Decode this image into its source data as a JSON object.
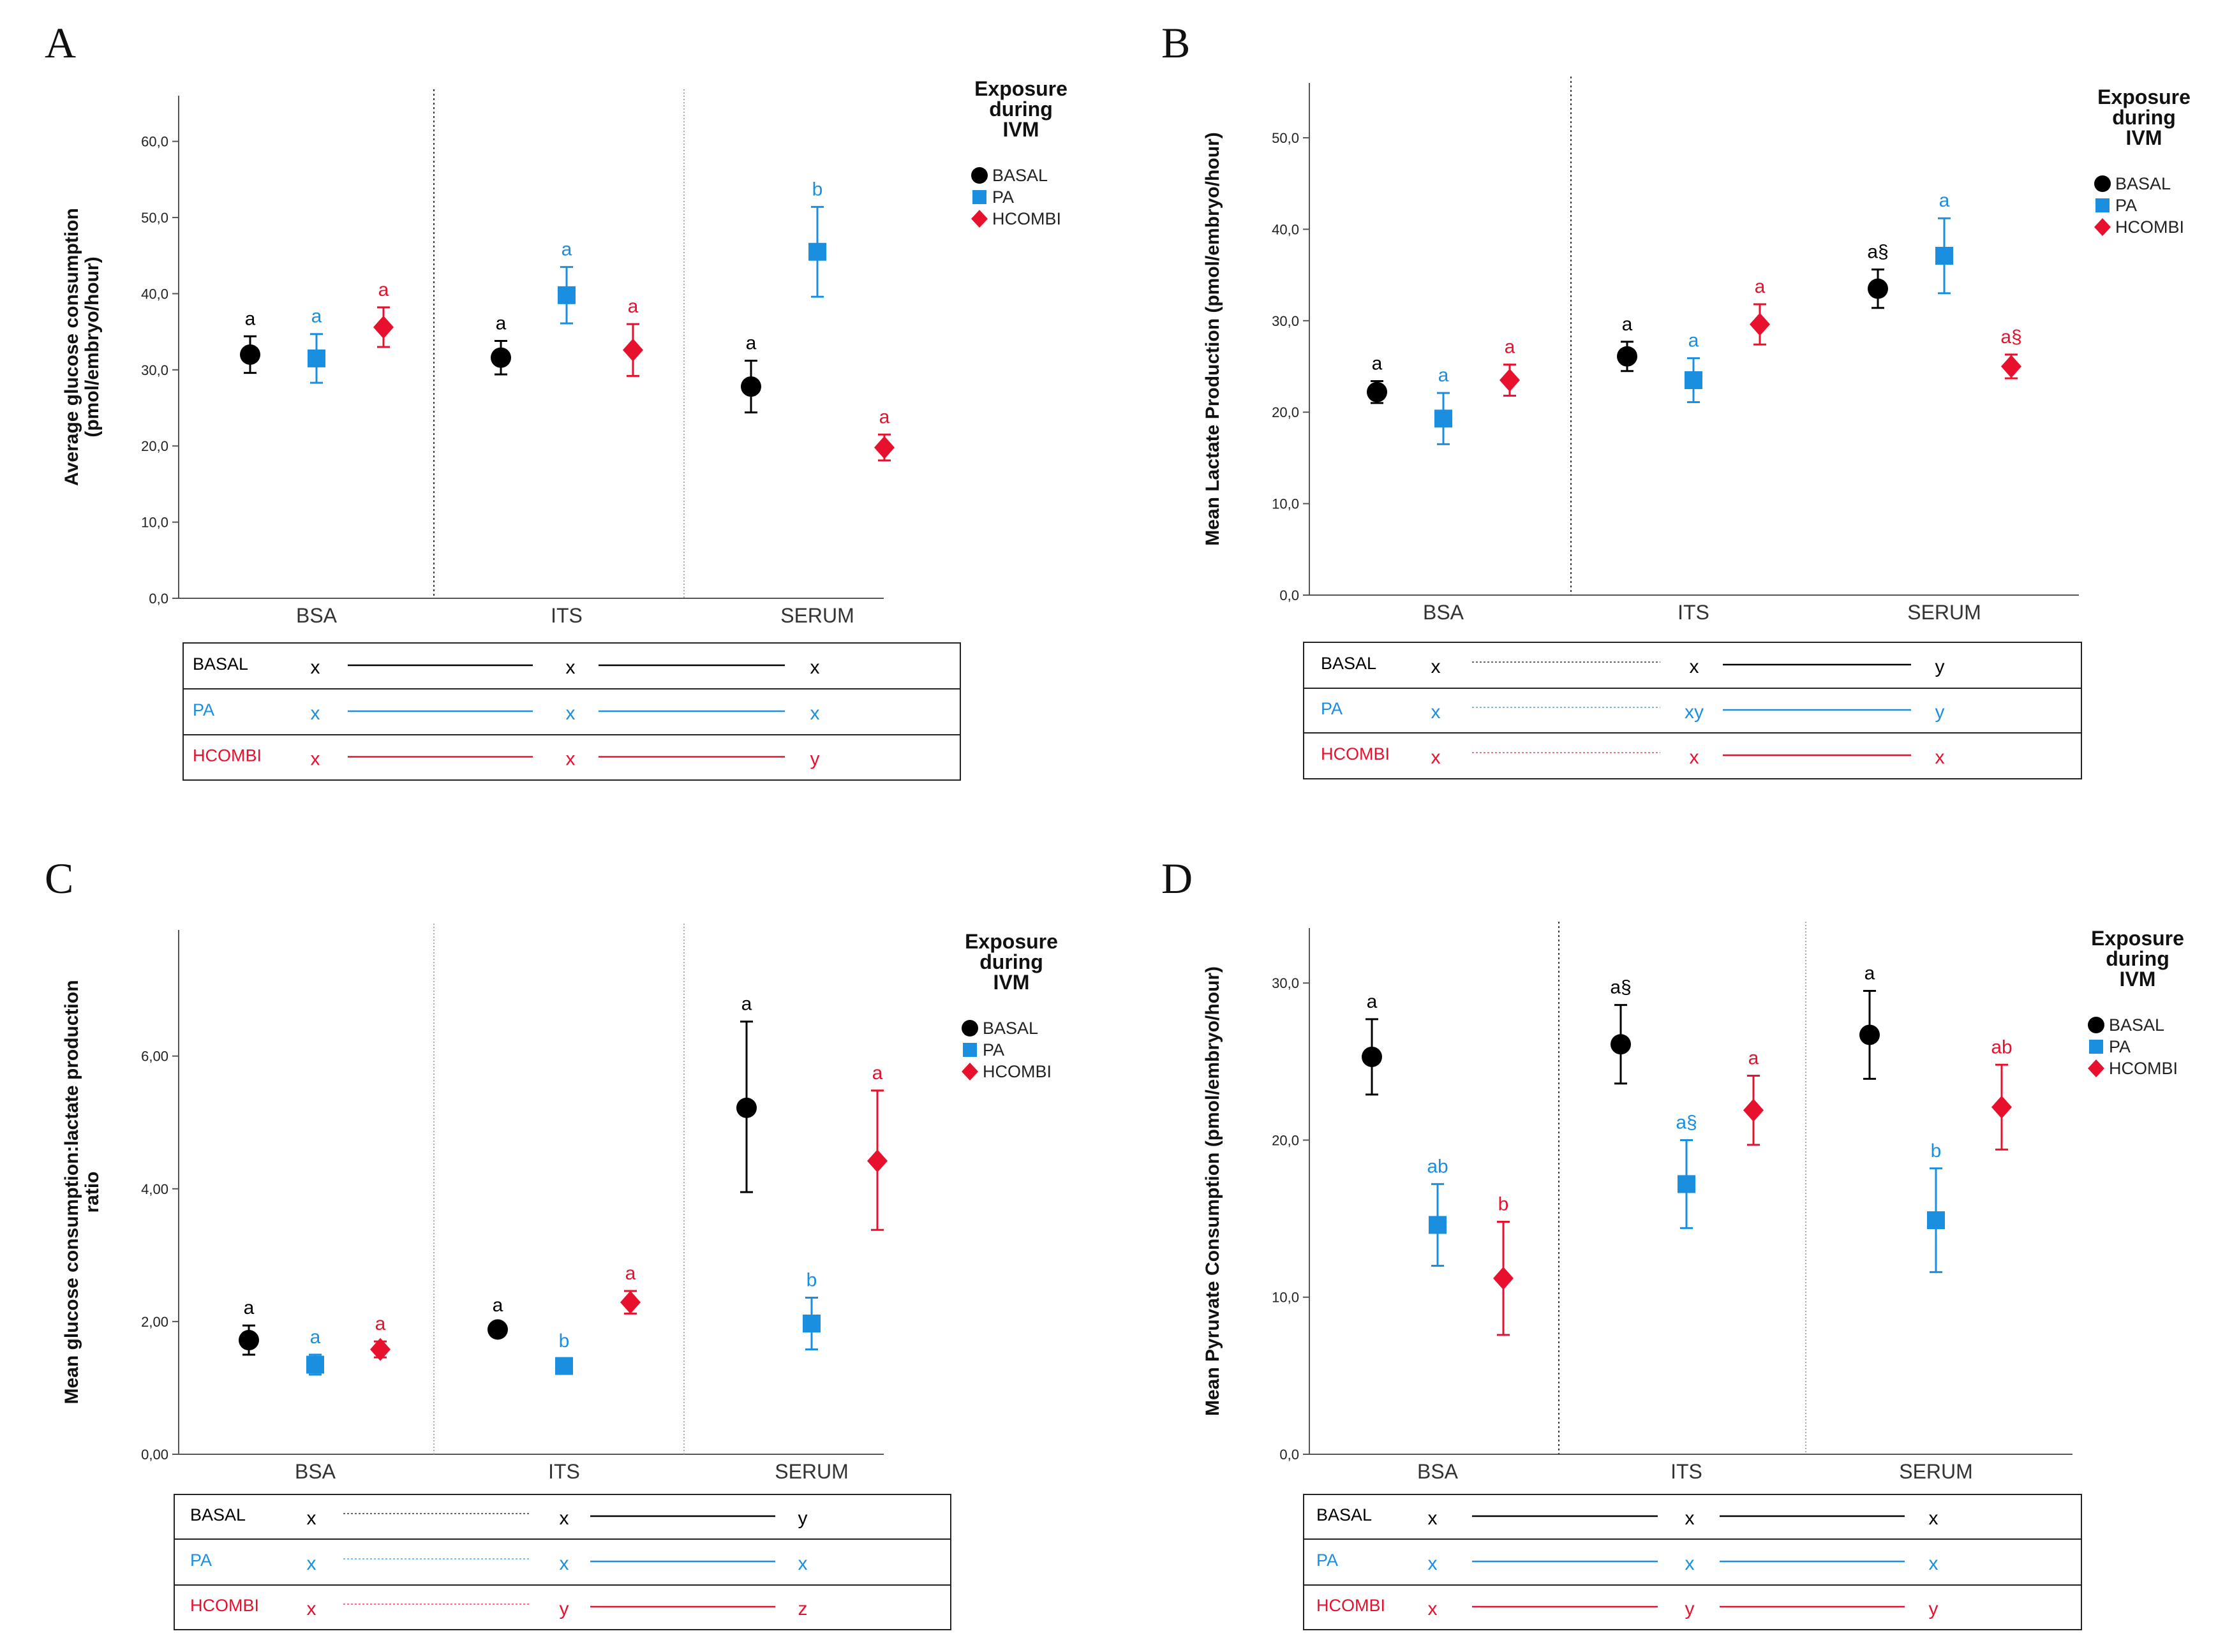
{
  "colors": {
    "basal": "#000000",
    "pa": "#1a8fe0",
    "hcombi": "#e8112d",
    "axis": "#555555",
    "text": "#222222"
  },
  "legend": {
    "title_lines": [
      "Exposure",
      "during",
      "IVM"
    ],
    "items": [
      "BASAL",
      "PA",
      "HCOMBI"
    ]
  },
  "groups": [
    "BSA",
    "ITS",
    "SERUM"
  ],
  "chart_data": [
    {
      "type": "scatter",
      "panel": "A",
      "ylabel_lines": [
        "Average glucose consumption",
        "(pmol/embryo/hour)"
      ],
      "ylim": [
        0,
        66
      ],
      "yticks": [
        "0,0",
        "10,0",
        "20,0",
        "30,0",
        "40,0",
        "50,0",
        "60,0"
      ],
      "ytick_values": [
        0,
        10,
        20,
        30,
        40,
        50,
        60
      ],
      "separators": [
        "dotted",
        "light"
      ],
      "series": [
        {
          "name": "BASAL",
          "marker": "circle",
          "values": [
            32.0,
            31.6,
            27.8
          ],
          "lo": [
            29.6,
            29.4,
            24.4
          ],
          "hi": [
            34.4,
            33.8,
            31.2
          ],
          "letters": [
            "a",
            "a",
            "a"
          ]
        },
        {
          "name": "PA",
          "marker": "square",
          "values": [
            31.5,
            39.8,
            45.5
          ],
          "lo": [
            28.3,
            36.1,
            39.6
          ],
          "hi": [
            34.7,
            43.5,
            51.4
          ],
          "letters": [
            "a",
            "a",
            "b"
          ]
        },
        {
          "name": "HCOMBI",
          "marker": "diamond",
          "values": [
            35.6,
            32.6,
            19.8
          ],
          "lo": [
            33.0,
            29.2,
            18.1
          ],
          "hi": [
            38.2,
            36.0,
            21.5
          ],
          "letters": [
            "a",
            "a",
            "a"
          ]
        }
      ],
      "table": {
        "rows": [
          {
            "label": "BASAL",
            "cells": [
              "x",
              "x",
              "x"
            ],
            "lines": [
              "solid",
              "solid"
            ]
          },
          {
            "label": "PA",
            "cells": [
              "x",
              "x",
              "x"
            ],
            "lines": [
              "solid",
              "solid"
            ]
          },
          {
            "label": "HCOMBI",
            "cells": [
              "x",
              "x",
              "y"
            ],
            "lines": [
              "solid",
              "solid"
            ]
          }
        ]
      }
    },
    {
      "type": "scatter",
      "panel": "B",
      "ylabel_lines": [
        "Mean Lactate Production (pmol/embryo/hour)"
      ],
      "ylim": [
        0,
        56
      ],
      "yticks": [
        "0,0",
        "10,0",
        "20,0",
        "30,0",
        "40,0",
        "50,0"
      ],
      "ytick_values": [
        0,
        10,
        20,
        30,
        40,
        50
      ],
      "separators": [
        "dotted",
        "none"
      ],
      "series": [
        {
          "name": "BASAL",
          "marker": "circle",
          "values": [
            22.2,
            26.1,
            33.5
          ],
          "lo": [
            21.0,
            24.5,
            31.4
          ],
          "hi": [
            23.4,
            27.7,
            35.6
          ],
          "letters": [
            "a",
            "a",
            "a§"
          ]
        },
        {
          "name": "PA",
          "marker": "square",
          "values": [
            19.3,
            23.5,
            37.1
          ],
          "lo": [
            16.5,
            21.1,
            33.0
          ],
          "hi": [
            22.1,
            25.9,
            41.2
          ],
          "letters": [
            "a",
            "a",
            "a"
          ]
        },
        {
          "name": "HCOMBI",
          "marker": "diamond",
          "values": [
            23.5,
            29.6,
            25.0
          ],
          "lo": [
            21.8,
            27.4,
            23.7
          ],
          "hi": [
            25.2,
            31.8,
            26.3
          ],
          "letters": [
            "a",
            "a",
            "a§"
          ]
        }
      ],
      "table": {
        "rows": [
          {
            "label": "BASAL",
            "cells": [
              "x",
              "x",
              "y"
            ],
            "lines": [
              "dotted",
              "solid"
            ]
          },
          {
            "label": "PA",
            "cells": [
              "x",
              "xy",
              "y"
            ],
            "lines": [
              "dotted",
              "solid"
            ]
          },
          {
            "label": "HCOMBI",
            "cells": [
              "x",
              "x",
              "x"
            ],
            "lines": [
              "dotted",
              "solid"
            ]
          }
        ]
      }
    },
    {
      "type": "scatter",
      "panel": "C",
      "ylabel_lines": [
        "Mean glucose consumption:lactate production",
        "ratio"
      ],
      "ylim": [
        0,
        7.9
      ],
      "yticks": [
        "0,00",
        "2,00",
        "4,00",
        "6,00"
      ],
      "ytick_values": [
        0,
        2,
        4,
        6
      ],
      "separators": [
        "light",
        "light"
      ],
      "series": [
        {
          "name": "BASAL",
          "marker": "circle",
          "values": [
            1.72,
            1.88,
            5.22
          ],
          "lo": [
            1.5,
            1.78,
            3.95
          ],
          "hi": [
            1.94,
            1.98,
            6.52
          ],
          "letters": [
            "a",
            "a",
            "a"
          ]
        },
        {
          "name": "PA",
          "marker": "square",
          "values": [
            1.35,
            1.33,
            1.97
          ],
          "lo": [
            1.2,
            1.22,
            1.58
          ],
          "hi": [
            1.5,
            1.44,
            2.36
          ],
          "letters": [
            "a",
            "b",
            "b"
          ]
        },
        {
          "name": "HCOMBI",
          "marker": "diamond",
          "values": [
            1.58,
            2.29,
            4.42
          ],
          "lo": [
            1.46,
            2.12,
            3.38
          ],
          "hi": [
            1.7,
            2.46,
            5.48
          ],
          "letters": [
            "a",
            "a",
            "a"
          ]
        }
      ],
      "table": {
        "rows": [
          {
            "label": "BASAL",
            "cells": [
              "x",
              "x",
              "y"
            ],
            "lines": [
              "dotted",
              "solid"
            ]
          },
          {
            "label": "PA",
            "cells": [
              "x",
              "x",
              "x"
            ],
            "lines": [
              "dotted",
              "solid"
            ]
          },
          {
            "label": "HCOMBI",
            "cells": [
              "x",
              "y",
              "z"
            ],
            "lines": [
              "dotted",
              "solid"
            ]
          }
        ]
      }
    },
    {
      "type": "scatter",
      "panel": "D",
      "ylabel_lines": [
        "Mean Pyruvate Consumption (pmol/embryo/hour)"
      ],
      "ylim": [
        0,
        33.5
      ],
      "yticks": [
        "0,0",
        "10,0",
        "20,0",
        "30,0"
      ],
      "ytick_values": [
        0,
        10,
        20,
        30
      ],
      "separators": [
        "dotted",
        "light"
      ],
      "series": [
        {
          "name": "BASAL",
          "marker": "circle",
          "values": [
            25.3,
            26.1,
            26.7
          ],
          "lo": [
            22.9,
            23.6,
            23.9
          ],
          "hi": [
            27.7,
            28.6,
            29.5
          ],
          "letters": [
            "a",
            "a§",
            "a"
          ]
        },
        {
          "name": "PA",
          "marker": "square",
          "values": [
            14.6,
            17.2,
            14.9
          ],
          "lo": [
            12.0,
            14.4,
            11.6
          ],
          "hi": [
            17.2,
            20.0,
            18.2
          ],
          "letters": [
            "ab",
            "a§",
            "b"
          ]
        },
        {
          "name": "HCOMBI",
          "marker": "diamond",
          "values": [
            11.2,
            21.9,
            22.1
          ],
          "lo": [
            7.6,
            19.7,
            19.4
          ],
          "hi": [
            14.8,
            24.1,
            24.8
          ],
          "letters": [
            "b",
            "a",
            "ab"
          ]
        }
      ],
      "table": {
        "rows": [
          {
            "label": "BASAL",
            "cells": [
              "x",
              "x",
              "x"
            ],
            "lines": [
              "solid",
              "solid"
            ]
          },
          {
            "label": "PA",
            "cells": [
              "x",
              "x",
              "x"
            ],
            "lines": [
              "solid",
              "solid"
            ]
          },
          {
            "label": "HCOMBI",
            "cells": [
              "x",
              "y",
              "y"
            ],
            "lines": [
              "solid",
              "solid"
            ]
          }
        ]
      }
    }
  ]
}
